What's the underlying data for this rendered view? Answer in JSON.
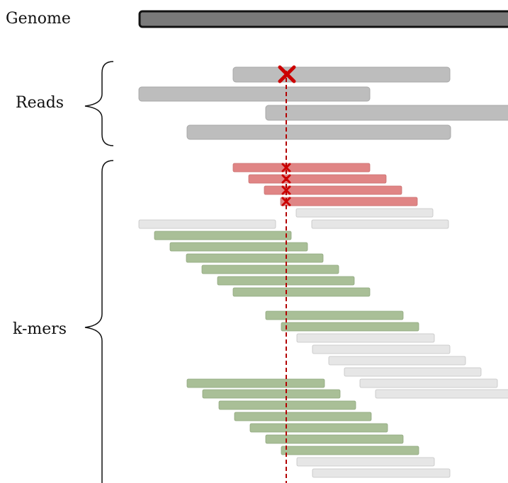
{
  "labels": {
    "genome": "Genome",
    "reads": "Reads",
    "kmers": "k-mers"
  },
  "colors": {
    "genome_fill": "#7a7a7a",
    "genome_stroke": "#111111",
    "read_fill": "#bdbdbd",
    "erroneous_kmer_fill": "#e08585",
    "correct_kmer_fill": "#a9bf97",
    "unrelated_kmer_fill": "#e6e6e6",
    "error_marker": "#cc0000"
  },
  "icons": {
    "error": "cross-icon"
  }
}
